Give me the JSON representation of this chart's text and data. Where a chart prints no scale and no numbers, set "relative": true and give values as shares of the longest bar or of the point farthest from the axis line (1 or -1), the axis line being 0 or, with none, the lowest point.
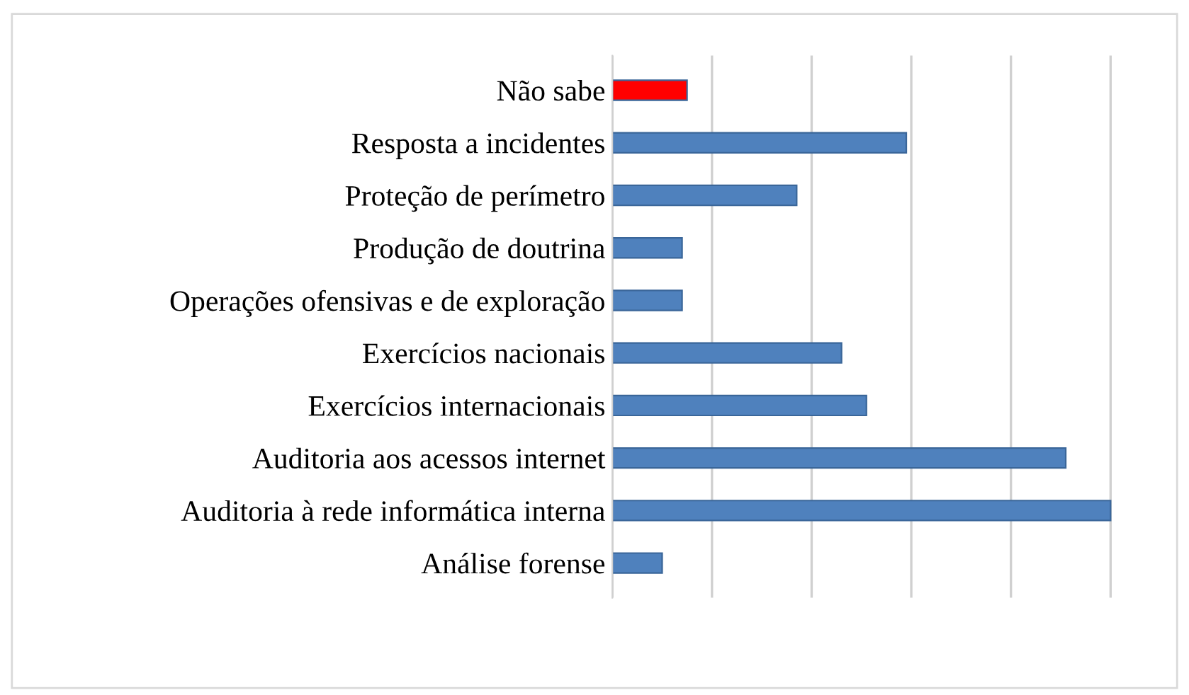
{
  "chart_data": {
    "type": "bar",
    "orientation": "horizontal",
    "relative": true,
    "categories": [
      "Não sabe",
      "Resposta a incidentes",
      "Proteção de perímetro",
      "Produção de doutrina",
      "Operações ofensivas e de exploração",
      "Exercícios nacionais",
      "Exercícios internacionais",
      "Auditoria aos acessos internet",
      "Auditoria à rede informática interna",
      "Análise forense"
    ],
    "values": [
      0.15,
      0.59,
      0.37,
      0.14,
      0.14,
      0.46,
      0.51,
      0.91,
      1,
      0.1
    ],
    "colors": [
      "#ff0000",
      "#4f81bd",
      "#4f81bd",
      "#4f81bd",
      "#4f81bd",
      "#4f81bd",
      "#4f81bd",
      "#4f81bd",
      "#4f81bd",
      "#4f81bd"
    ],
    "grid": "x"
  }
}
